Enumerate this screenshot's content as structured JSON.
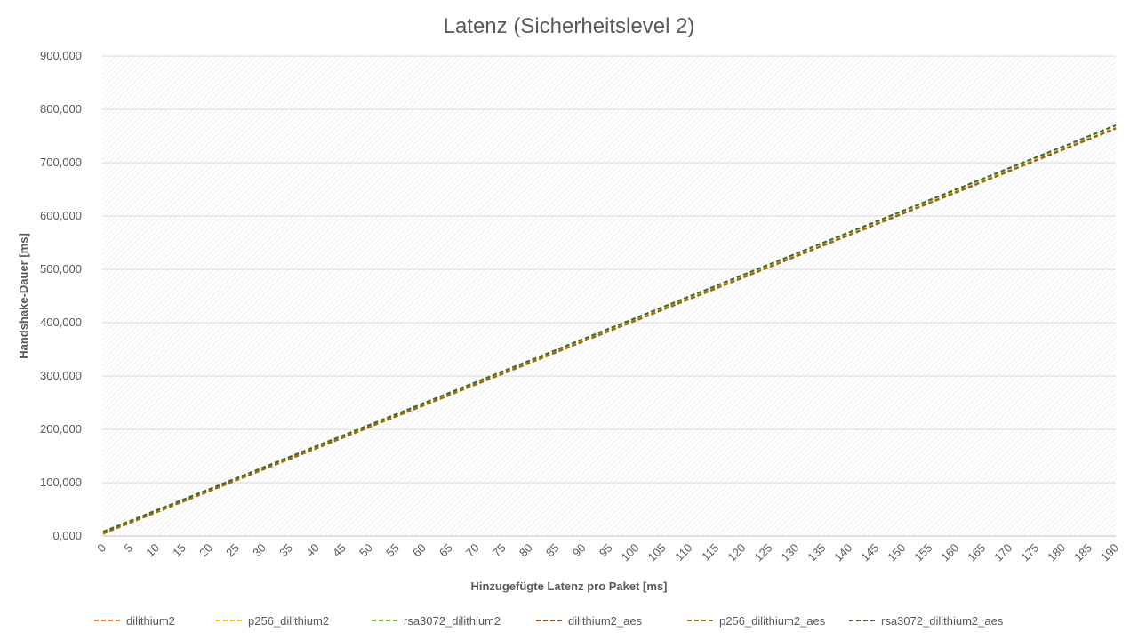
{
  "chart_data": {
    "type": "line",
    "title": "Latenz (Sicherheitslevel 2)",
    "xlabel": "Hinzugefügte Latenz pro Paket [ms]",
    "ylabel": "Handshake-Dauer [ms]",
    "categories": [
      "0",
      "5",
      "10",
      "15",
      "20",
      "25",
      "30",
      "35",
      "40",
      "45",
      "50",
      "55",
      "60",
      "65",
      "70",
      "75",
      "80",
      "85",
      "90",
      "95",
      "100",
      "105",
      "110",
      "115",
      "120",
      "125",
      "130",
      "135",
      "140",
      "145",
      "150",
      "155",
      "160",
      "165",
      "170",
      "175",
      "180",
      "185",
      "190"
    ],
    "y_ticks": [
      "0,000",
      "100,000",
      "200,000",
      "300,000",
      "400,000",
      "500,000",
      "600,000",
      "700,000",
      "800,000",
      "900,000"
    ],
    "ylim": [
      0,
      900
    ],
    "grid": true,
    "legend_position": "bottom",
    "series": [
      {
        "name": "dilithium2",
        "color": "#ED7D31",
        "start": 4.5,
        "end": 764
      },
      {
        "name": "p256_dilithium2",
        "color": "#FFC000",
        "start": 5.0,
        "end": 765
      },
      {
        "name": "rsa3072_dilithium2",
        "color": "#70AD47",
        "start": 8.0,
        "end": 770
      },
      {
        "name": "dilithium2_aes",
        "color": "#9E480E",
        "start": 4.5,
        "end": 764
      },
      {
        "name": "p256_dilithium2_aes",
        "color": "#997300",
        "start": 5.0,
        "end": 765
      },
      {
        "name": "rsa3072_dilithium2_aes",
        "color": "#43682B",
        "start": 8.0,
        "end": 770
      }
    ]
  }
}
